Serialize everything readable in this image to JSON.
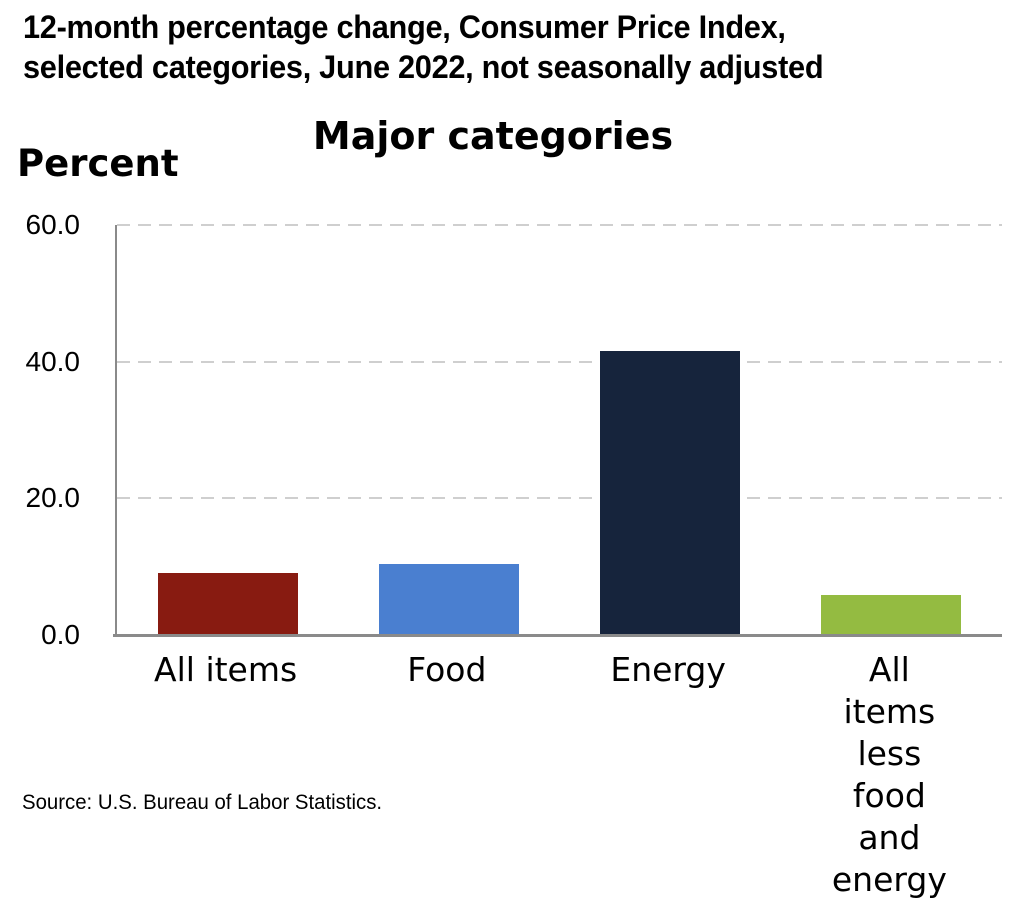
{
  "header": {
    "title_lines": [
      "12-month percentage change, Consumer Price Index,",
      "selected categories, June 2022, not seasonally adjusted"
    ]
  },
  "chart_data": {
    "type": "bar",
    "title": "Major categories",
    "ylabel": "Percent",
    "categories": [
      "All items",
      "Food",
      "Energy",
      "All items\nless food\nand energy"
    ],
    "values": [
      9.1,
      10.4,
      41.6,
      5.9
    ],
    "bar_colors": [
      "#881b11",
      "#4a7fd0",
      "#16243c",
      "#94bb41"
    ],
    "ylim": [
      0,
      60
    ],
    "yticks": [
      0,
      20,
      40,
      60
    ],
    "ytick_labels": [
      "0.0",
      "20.0",
      "40.0",
      "60.0"
    ],
    "grid": "horizontal-dashed",
    "legend": "none"
  },
  "footer": {
    "source": "Source: U.S. Bureau of Labor Statistics."
  }
}
